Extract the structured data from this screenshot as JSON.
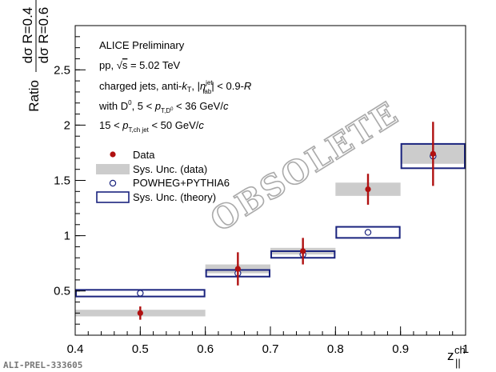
{
  "chart_data": {
    "type": "scatter",
    "title": "",
    "ylabel_prefix": "Ratio",
    "ylabel_num": "dσ R=0.4",
    "ylabel_den": "dσ R=0.6",
    "xlabel": "z",
    "xlabel_sup": "ch",
    "xlabel_sub": "||",
    "xlim": [
      0.4,
      1.0
    ],
    "ylim": [
      0.1,
      2.9
    ],
    "x_ticks": [
      {
        "v": 0.4,
        "label": "0.4"
      },
      {
        "v": 0.5,
        "label": "0.5"
      },
      {
        "v": 0.6,
        "label": "0.6"
      },
      {
        "v": 0.7,
        "label": "0.7"
      },
      {
        "v": 0.8,
        "label": "0.8"
      },
      {
        "v": 0.9,
        "label": "0.9"
      },
      {
        "v": 1.0,
        "label": "1"
      }
    ],
    "y_ticks": [
      {
        "v": 0.5,
        "label": "0.5"
      },
      {
        "v": 1.0,
        "label": "1"
      },
      {
        "v": 1.5,
        "label": "1.5"
      },
      {
        "v": 2.0,
        "label": "2"
      },
      {
        "v": 2.5,
        "label": "2.5"
      }
    ],
    "bins": [
      [
        0.4,
        0.6
      ],
      [
        0.6,
        0.7
      ],
      [
        0.7,
        0.8
      ],
      [
        0.8,
        0.9
      ],
      [
        0.9,
        1.0
      ]
    ],
    "series": [
      {
        "name": "Data",
        "x": [
          0.5,
          0.65,
          0.75,
          0.85,
          0.95
        ],
        "y": [
          0.3,
          0.7,
          0.86,
          1.42,
          1.74
        ],
        "stat_err": [
          0.06,
          0.15,
          0.12,
          0.14,
          0.29
        ],
        "sys_err": [
          0.03,
          0.04,
          0.03,
          0.06,
          0.09
        ],
        "color": "#b01010"
      },
      {
        "name": "POWHEG+PYTHIA6",
        "x": [
          0.5,
          0.65,
          0.75,
          0.85,
          0.95
        ],
        "y": [
          0.48,
          0.66,
          0.83,
          1.03,
          1.72
        ],
        "sys_err": [
          0.03,
          0.03,
          0.03,
          0.05,
          0.11
        ],
        "color": "#1a237e"
      }
    ],
    "legend": {
      "placement": "left",
      "entries": [
        "Data",
        "Sys. Unc. (data)",
        "POWHEG+PYTHIA6",
        "Sys. Unc. (theory)"
      ]
    },
    "annotations": [
      "ALICE Preliminary",
      "pp, √s = 5.02 TeV",
      "charged jets, anti-k_T, |η_lab^jet| < 0.9-R",
      "with D⁰, 5 < p_T,D⁰ < 36 GeV/c",
      "15 < p_T,ch jet < 50 GeV/c"
    ],
    "watermark": "OBSOLETE",
    "figure_id": "ALI-PREL-333605"
  },
  "text": {
    "alice": "ALICE Preliminary",
    "pp": "pp, ",
    "sqrt": "√",
    "s": "s",
    "energy": " = 5.02 TeV",
    "charged": "charged jets, anti-",
    "k": "k",
    "kT": "T",
    "comma": ", |",
    "eta": "η",
    "eta_sup": "jet",
    "eta_sub": "lab",
    "eta_tail": "| < 0.9-",
    "R": "R",
    "withD": "with D",
    "withD_sup": "0",
    "withD_tail": ", 5 < ",
    "p": "p",
    "pD_sub": "T,D",
    "pD_sub2": "0",
    "pD_tail": " < 36 GeV/",
    "c": "c",
    "jet_pre": "15 < ",
    "pjet_sub": "T,ch jet",
    "jet_tail": " < 50 GeV/",
    "stamp": "ALI-PREL-333605",
    "watermark": "OBSOLETE"
  },
  "colors": {
    "data": "#b01010",
    "data_sys": "#cccccc",
    "theory": "#1a237e"
  }
}
